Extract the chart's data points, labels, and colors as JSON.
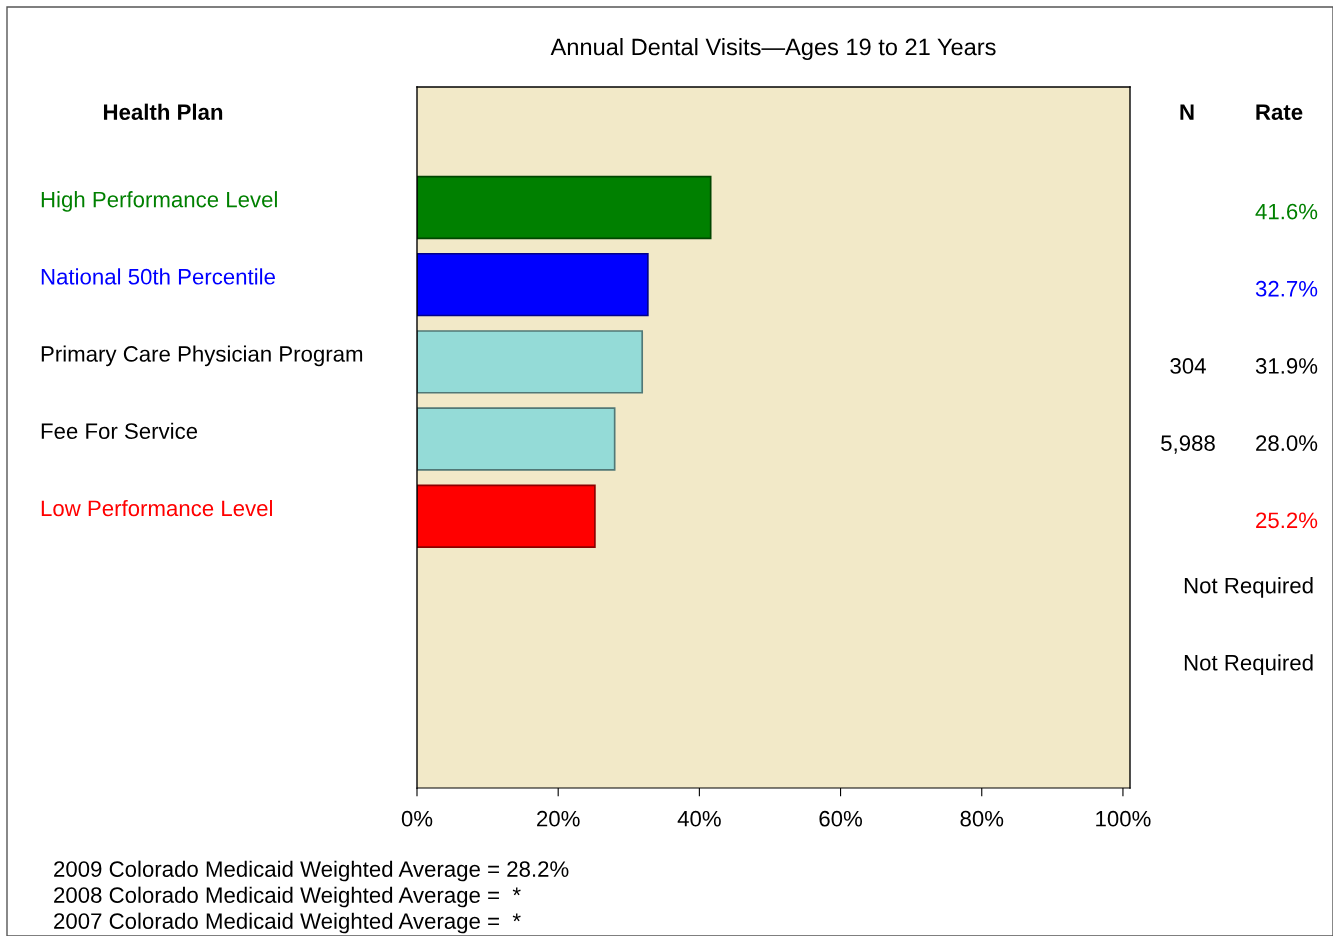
{
  "chart_data": {
    "type": "bar",
    "orientation": "horizontal",
    "title": "Annual Dental Visits—Ages 19 to 21 Years",
    "categories": [
      "High Performance Level",
      "National 50th Percentile",
      "Primary Care Physician Program",
      "Fee For Service",
      "Low Performance Level",
      null,
      null
    ],
    "values": [
      41.6,
      32.7,
      31.9,
      28.0,
      25.2,
      null,
      null
    ],
    "colors": [
      "#008000",
      "#0000ff",
      "#94dbd7",
      "#94dbd7",
      "#ff0000",
      null,
      null
    ],
    "value_labels": [
      "41.6%",
      "32.7%",
      "31.9%",
      "28.0%",
      "25.2%",
      "Not Required",
      "Not Required"
    ],
    "xlim": [
      0,
      101
    ],
    "xticks": [
      {
        "value": 0,
        "label": "0%"
      },
      {
        "value": 20,
        "label": "20%"
      },
      {
        "value": 40,
        "label": "40%"
      },
      {
        "value": 60,
        "label": "60%"
      },
      {
        "value": 80,
        "label": "80%"
      },
      {
        "value": 100,
        "label": "100%"
      }
    ],
    "grid": false,
    "annotations": [
      "Health Plan",
      "N",
      "Rate",
      "304",
      "5,988",
      "2009 Colorado Medicaid Weighted Average = 28.2%",
      "2008 Colorado Medicaid Weighted Average =  *",
      "2007 Colorado Medicaid Weighted Average =  *"
    ]
  }
}
